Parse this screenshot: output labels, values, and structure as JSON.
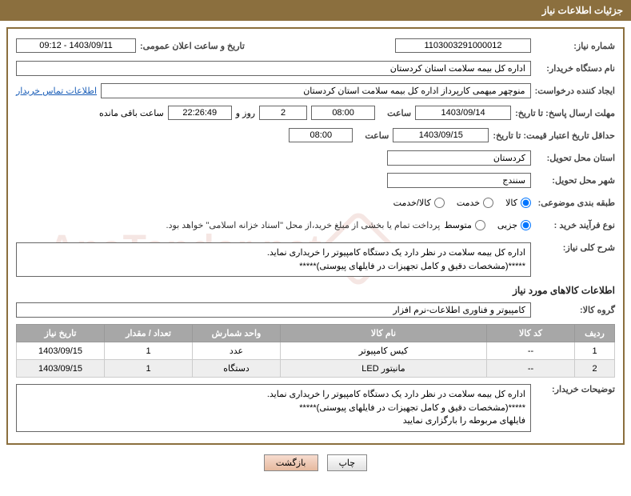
{
  "header": {
    "title": "جزئیات اطلاعات نیاز"
  },
  "form": {
    "need_no_label": "شماره نیاز:",
    "need_no": "1103003291000012",
    "announce_label": "تاریخ و ساعت اعلان عمومی:",
    "announce_value": "1403/09/11 - 09:12",
    "buyer_label": "نام دستگاه خریدار:",
    "buyer_value": "اداره کل بیمه سلامت استان کردستان",
    "requester_label": "ایجاد کننده درخواست:",
    "requester_value": "منوچهر میهمی کارپرداز اداره کل بیمه سلامت استان کردستان",
    "contact_link": "اطلاعات تماس خریدار",
    "deadline_label": "مهلت ارسال پاسخ: تا تاریخ:",
    "deadline_date": "1403/09/14",
    "time_label": "ساعت",
    "deadline_time": "08:00",
    "days_value": "2",
    "days_and_label": "روز و",
    "countdown": "22:26:49",
    "remaining_label": "ساعت باقی مانده",
    "validity_label": "حداقل تاریخ اعتبار قیمت: تا تاریخ:",
    "validity_date": "1403/09/15",
    "validity_time": "08:00",
    "province_label": "استان محل تحویل:",
    "province_value": "کردستان",
    "city_label": "شهر محل تحویل:",
    "city_value": "سنندج",
    "category_label": "طبقه بندی موضوعی:",
    "cat_goods": "کالا",
    "cat_service": "خدمت",
    "cat_both": "کالا/خدمت",
    "purchase_type_label": "نوع فرآیند خرید :",
    "pt_small": "جزیی",
    "pt_medium": "متوسط",
    "purchase_note": "پرداخت تمام یا بخشی از مبلغ خرید،از محل \"اسناد خزانه اسلامی\" خواهد بود.",
    "overview_label": "شرح کلی نیاز:",
    "overview_text": "اداره کل بیمه سلامت در نظر دارد یک دستگاه  کامپیوتر را خریداری نماید.\n*****(مشخصات دقیق و کامل تجهیزات در فایلهای پیوستی)*****",
    "items_section_title": "اطلاعات کالاهای مورد نیاز",
    "group_label": "گروه کالا:",
    "group_value": "کامپیوتر و فناوری اطلاعات-نرم افزار",
    "buyer_notes_label": "توضیحات خریدار:",
    "buyer_notes_text": "اداره کل بیمه سلامت در نظر دارد یک دستگاه  کامپیوتر را خریداری نماید.\n*****(مشخصات دقیق و کامل تجهیزات در فایلهای پیوستی)*****\nفایلهای مربوطه را بارگزاری نمایید"
  },
  "table": {
    "columns": [
      "ردیف",
      "کد کالا",
      "نام کالا",
      "واحد شمارش",
      "تعداد / مقدار",
      "تاریخ نیاز"
    ],
    "rows": [
      [
        "1",
        "--",
        "کیس کامپیوتر",
        "عدد",
        "1",
        "1403/09/15"
      ],
      [
        "2",
        "--",
        "مانیتور LED",
        "دستگاه",
        "1",
        "1403/09/15"
      ]
    ]
  },
  "buttons": {
    "print": "چاپ",
    "back": "بازگشت"
  },
  "watermark": {
    "text": "AnaTandar.nat"
  },
  "colors": {
    "header_bg": "#8b6f3e",
    "border": "#8b6f3e",
    "th_bg": "#a7a7a7",
    "link": "#1a5eb8"
  }
}
